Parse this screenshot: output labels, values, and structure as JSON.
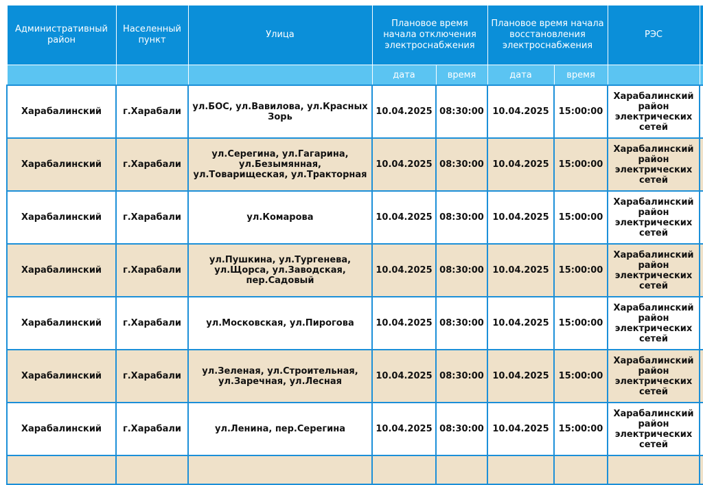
{
  "table": {
    "headers": {
      "district": "Административный район",
      "town": "Населенный пункт",
      "street": "Улица",
      "off_time": "Плановое время начала отключения электроснабжения",
      "restore_time": "Плановое время начала восстановления электроснабжения",
      "res": "РЭС"
    },
    "subheaders": {
      "date1": "дата",
      "time1": "время",
      "date2": "дата",
      "time2": "время"
    },
    "rows": [
      {
        "district": "Харабалинский",
        "town": "г.Харабали",
        "street": "ул.БОС, ул.Вавилова, ул.Красных Зорь",
        "off_date": "10.04.2025",
        "off_time": "08:30:00",
        "on_date": "10.04.2025",
        "on_time": "15:00:00",
        "res": "Харабалинский район электрических сетей"
      },
      {
        "district": "Харабалинский",
        "town": "г.Харабали",
        "street": "ул.Серегина, ул.Гагарина, ул.Безымянная, ул.Товарищеская, ул.Тракторная",
        "off_date": "10.04.2025",
        "off_time": "08:30:00",
        "on_date": "10.04.2025",
        "on_time": "15:00:00",
        "res": "Харабалинский район электрических сетей"
      },
      {
        "district": "Харабалинский",
        "town": "г.Харабали",
        "street": "ул.Комарова",
        "off_date": "10.04.2025",
        "off_time": "08:30:00",
        "on_date": "10.04.2025",
        "on_time": "15:00:00",
        "res": "Харабалинский район электрических сетей"
      },
      {
        "district": "Харабалинский",
        "town": "г.Харабали",
        "street": "ул.Пушкина, ул.Тургенева, ул.Щорса, ул.Заводская, пер.Садовый",
        "off_date": "10.04.2025",
        "off_time": "08:30:00",
        "on_date": "10.04.2025",
        "on_time": "15:00:00",
        "res": "Харабалинский район электрических сетей"
      },
      {
        "district": "Харабалинский",
        "town": "г.Харабали",
        "street": "ул.Московская, ул.Пирогова",
        "off_date": "10.04.2025",
        "off_time": "08:30:00",
        "on_date": "10.04.2025",
        "on_time": "15:00:00",
        "res": "Харабалинский район электрических сетей"
      },
      {
        "district": "Харабалинский",
        "town": "г.Харабали",
        "street": "ул.Зеленая, ул.Строительная, ул.Заречная, ул.Лесная",
        "off_date": "10.04.2025",
        "off_time": "08:30:00",
        "on_date": "10.04.2025",
        "on_time": "15:00:00",
        "res": "Харабалинский район электрических сетей"
      },
      {
        "district": "Харабалинский",
        "town": "г.Харабали",
        "street": "ул.Ленина, пер.Серегина",
        "off_date": "10.04.2025",
        "off_time": "08:30:00",
        "on_date": "10.04.2025",
        "on_time": "15:00:00",
        "res": "Харабалинский район электрических сетей"
      }
    ]
  },
  "colors": {
    "header_bg": "#0b8fd9",
    "subheader_bg": "#5bc4f2",
    "row_alt_bg": "#efe1c9",
    "border": "#1b8fd8"
  }
}
